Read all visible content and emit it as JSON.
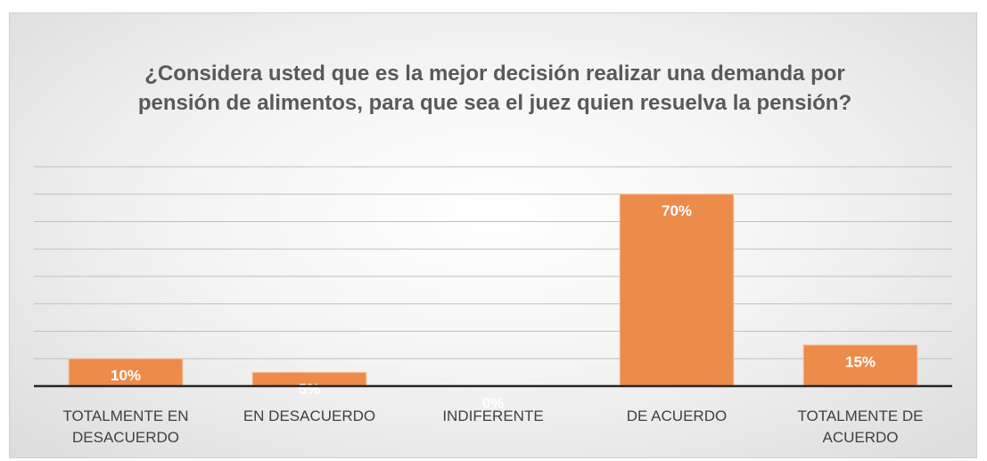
{
  "chart_data": {
    "type": "bar",
    "title": "¿Considera usted que es la mejor decisión realizar una demanda por pensión de alimentos, para que sea el juez quien resuelva la pensión?",
    "categories": [
      "TOTALMENTE EN DESACUERDO",
      "EN DESACUERDO",
      "INDIFERENTE",
      "DE ACUERDO",
      "TOTALMENTE DE ACUERDO"
    ],
    "values": [
      10,
      5,
      0,
      70,
      15
    ],
    "value_labels": [
      "10%",
      "5%",
      "0%",
      "70%",
      "15%"
    ],
    "color": "#ed8b4b",
    "ylim": [
      0,
      80
    ],
    "yticks": [
      0,
      10,
      20,
      30,
      40,
      50,
      60,
      70,
      80
    ],
    "grid": true
  }
}
